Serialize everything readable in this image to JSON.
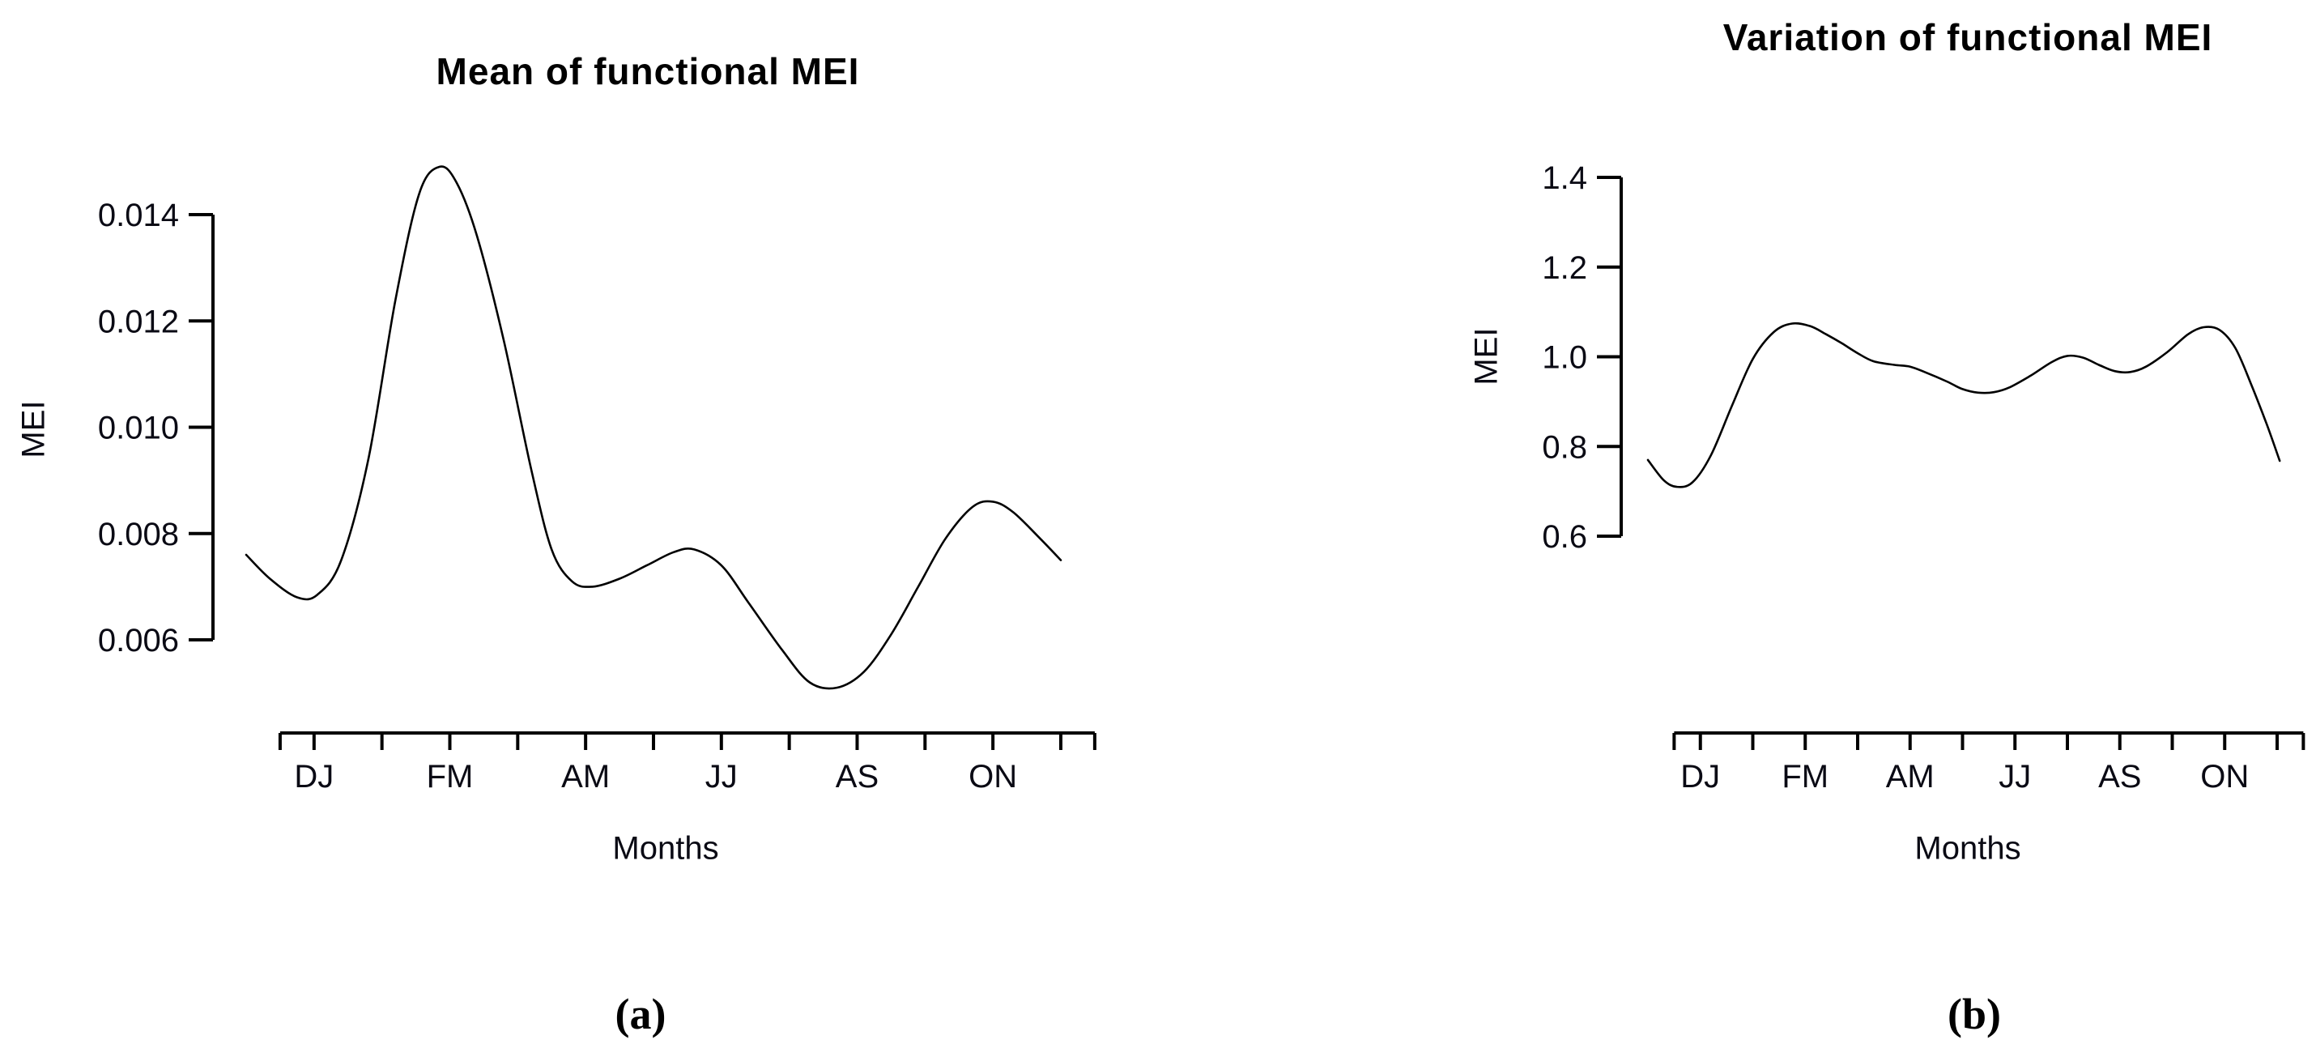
{
  "page": {
    "background_color": "#ffffff",
    "axis_color": "#000000",
    "line_color": "#000000",
    "text_color": "#0a0a14"
  },
  "figure": {
    "captions": {
      "a": "(a)",
      "b": "(b)"
    }
  },
  "chart_data": [
    {
      "id": "mean-functional-mei",
      "type": "line",
      "title": "Mean of functional MEI",
      "xlabel": "Months",
      "ylabel": "MEI",
      "x_tick_labels": [
        "DJ",
        "FM",
        "AM",
        "JJ",
        "AS",
        "ON"
      ],
      "x_label_months": [
        1,
        3,
        5,
        7,
        9,
        11
      ],
      "x_minor_tick_months": [
        0.5,
        1,
        2,
        3,
        4,
        5,
        6,
        7,
        8,
        9,
        10,
        11,
        12,
        12.5
      ],
      "xlim_months": [
        0,
        12
      ],
      "y_ticks": [
        0.006,
        0.008,
        0.01,
        0.012,
        0.014
      ],
      "y_tick_labels": [
        "0.006",
        "0.008",
        "0.010",
        "0.012",
        "0.014"
      ],
      "ylim": [
        0.006,
        0.014
      ],
      "grid": "off",
      "legend": "none",
      "points": [
        [
          0,
          0.0076
        ],
        [
          0.35,
          0.00715
        ],
        [
          0.75,
          0.0068
        ],
        [
          1.05,
          0.00685
        ],
        [
          1.4,
          0.0075
        ],
        [
          1.8,
          0.0094
        ],
        [
          2.2,
          0.0124
        ],
        [
          2.55,
          0.0144
        ],
        [
          2.85,
          0.0149
        ],
        [
          3.1,
          0.0146
        ],
        [
          3.4,
          0.0136
        ],
        [
          3.8,
          0.0116
        ],
        [
          4.2,
          0.0092
        ],
        [
          4.5,
          0.0077
        ],
        [
          4.8,
          0.0071
        ],
        [
          5.1,
          0.007
        ],
        [
          5.5,
          0.00715
        ],
        [
          5.9,
          0.0074
        ],
        [
          6.3,
          0.00765
        ],
        [
          6.6,
          0.0077
        ],
        [
          7,
          0.0074
        ],
        [
          7.4,
          0.0067
        ],
        [
          7.9,
          0.0058
        ],
        [
          8.3,
          0.0052
        ],
        [
          8.7,
          0.0051
        ],
        [
          9.1,
          0.0054
        ],
        [
          9.5,
          0.0061
        ],
        [
          9.9,
          0.007
        ],
        [
          10.3,
          0.0079
        ],
        [
          10.7,
          0.0085
        ],
        [
          11,
          0.0086
        ],
        [
          11.3,
          0.0084
        ],
        [
          11.7,
          0.0079
        ],
        [
          12,
          0.0075
        ]
      ]
    },
    {
      "id": "variation-functional-mei",
      "type": "line",
      "title": "Variation of functional MEI",
      "xlabel": "Months",
      "ylabel": "MEI",
      "x_tick_labels": [
        "DJ",
        "FM",
        "AM",
        "JJ",
        "AS",
        "ON"
      ],
      "x_label_months": [
        1,
        3,
        5,
        7,
        9,
        11
      ],
      "x_minor_tick_months": [
        0.5,
        1,
        2,
        3,
        4,
        5,
        6,
        7,
        8,
        9,
        10,
        11,
        12,
        12.5
      ],
      "xlim_months": [
        0,
        12.1
      ],
      "y_ticks": [
        0.6,
        0.8,
        1.0,
        1.2,
        1.4
      ],
      "y_tick_labels": [
        "0.6",
        "0.8",
        "1.0",
        "1.2",
        "1.4"
      ],
      "ylim": [
        0.6,
        1.4
      ],
      "grid": "off",
      "legend": "none",
      "points": [
        [
          0,
          0.77
        ],
        [
          0.3,
          0.725
        ],
        [
          0.55,
          0.71
        ],
        [
          0.85,
          0.72
        ],
        [
          1.2,
          0.78
        ],
        [
          1.6,
          0.89
        ],
        [
          2,
          0.995
        ],
        [
          2.4,
          1.055
        ],
        [
          2.75,
          1.074
        ],
        [
          3.1,
          1.068
        ],
        [
          3.4,
          1.05
        ],
        [
          3.7,
          1.03
        ],
        [
          4,
          1.008
        ],
        [
          4.3,
          0.99
        ],
        [
          4.7,
          0.982
        ],
        [
          5,
          0.978
        ],
        [
          5.3,
          0.965
        ],
        [
          5.7,
          0.945
        ],
        [
          6,
          0.928
        ],
        [
          6.3,
          0.92
        ],
        [
          6.6,
          0.921
        ],
        [
          6.9,
          0.932
        ],
        [
          7.3,
          0.958
        ],
        [
          7.7,
          0.988
        ],
        [
          8,
          1.002
        ],
        [
          8.3,
          0.998
        ],
        [
          8.6,
          0.982
        ],
        [
          8.9,
          0.968
        ],
        [
          9.2,
          0.966
        ],
        [
          9.5,
          0.978
        ],
        [
          9.9,
          1.01
        ],
        [
          10.3,
          1.05
        ],
        [
          10.6,
          1.066
        ],
        [
          10.9,
          1.06
        ],
        [
          11.2,
          1.02
        ],
        [
          11.5,
          0.94
        ],
        [
          11.8,
          0.85
        ],
        [
          12.05,
          0.768
        ]
      ]
    }
  ]
}
